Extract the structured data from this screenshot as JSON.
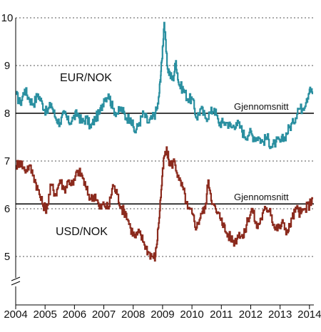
{
  "chart_data": {
    "type": "line",
    "title": "",
    "xlabel": "",
    "ylabel": "",
    "xlim": [
      2004,
      2014.15
    ],
    "ylim": [
      5,
      10
    ],
    "y_axis_break": true,
    "grid": "dotted horizontal",
    "x_ticks": [
      "2004",
      "2005",
      "2006",
      "2007",
      "2008",
      "2009",
      "2010",
      "2011",
      "2012",
      "2013",
      "2014"
    ],
    "y_ticks": [
      "5",
      "6",
      "7",
      "8",
      "9",
      "10"
    ],
    "series": [
      {
        "name": "EUR/NOK",
        "color": "#2a8fa0",
        "x": [
          2004.0,
          2004.15,
          2004.3,
          2004.45,
          2004.6,
          2004.75,
          2004.9,
          2005.05,
          2005.2,
          2005.35,
          2005.5,
          2005.65,
          2005.8,
          2005.95,
          2006.1,
          2006.25,
          2006.4,
          2006.55,
          2006.7,
          2006.85,
          2007.0,
          2007.15,
          2007.3,
          2007.45,
          2007.6,
          2007.75,
          2007.9,
          2008.05,
          2008.2,
          2008.35,
          2008.5,
          2008.65,
          2008.75,
          2008.85,
          2008.92,
          2008.97,
          2009.05,
          2009.15,
          2009.25,
          2009.35,
          2009.45,
          2009.55,
          2009.7,
          2009.85,
          2010.0,
          2010.15,
          2010.3,
          2010.45,
          2010.6,
          2010.75,
          2010.9,
          2011.05,
          2011.2,
          2011.35,
          2011.5,
          2011.65,
          2011.8,
          2011.95,
          2012.1,
          2012.25,
          2012.4,
          2012.55,
          2012.7,
          2012.85,
          2013.0,
          2013.15,
          2013.3,
          2013.45,
          2013.6,
          2013.75,
          2013.9,
          2014.0,
          2014.1
        ],
        "values": [
          8.4,
          8.2,
          8.5,
          8.3,
          8.2,
          8.4,
          8.2,
          8.0,
          8.2,
          7.9,
          7.8,
          8.0,
          7.8,
          7.9,
          8.0,
          7.8,
          7.9,
          7.7,
          7.9,
          8.0,
          8.3,
          8.4,
          8.1,
          8.0,
          8.1,
          7.9,
          7.9,
          7.6,
          7.8,
          8.0,
          7.8,
          7.9,
          8.0,
          8.2,
          8.7,
          9.1,
          9.9,
          9.0,
          8.8,
          8.7,
          9.1,
          8.6,
          8.5,
          8.3,
          8.3,
          7.9,
          8.1,
          7.9,
          8.0,
          8.1,
          7.8,
          7.8,
          7.8,
          7.7,
          7.8,
          7.7,
          7.5,
          7.6,
          7.5,
          7.5,
          7.4,
          7.5,
          7.3,
          7.4,
          7.4,
          7.5,
          7.7,
          7.8,
          8.1,
          8.1,
          8.3,
          8.5,
          8.4
        ]
      },
      {
        "name": "USD/NOK",
        "color": "#8b2a1d",
        "x": [
          2004.0,
          2004.15,
          2004.3,
          2004.45,
          2004.6,
          2004.75,
          2004.9,
          2005.05,
          2005.2,
          2005.35,
          2005.5,
          2005.65,
          2005.8,
          2005.95,
          2006.1,
          2006.25,
          2006.4,
          2006.55,
          2006.7,
          2006.85,
          2007.0,
          2007.15,
          2007.3,
          2007.45,
          2007.6,
          2007.75,
          2007.9,
          2008.05,
          2008.2,
          2008.35,
          2008.5,
          2008.65,
          2008.75,
          2008.85,
          2008.95,
          2009.05,
          2009.15,
          2009.25,
          2009.4,
          2009.55,
          2009.7,
          2009.85,
          2010.0,
          2010.15,
          2010.3,
          2010.45,
          2010.55,
          2010.7,
          2010.85,
          2011.0,
          2011.15,
          2011.3,
          2011.45,
          2011.6,
          2011.75,
          2011.9,
          2012.05,
          2012.2,
          2012.35,
          2012.5,
          2012.65,
          2012.8,
          2012.95,
          2013.1,
          2013.25,
          2013.4,
          2013.55,
          2013.7,
          2013.85,
          2014.0,
          2014.1
        ],
        "values": [
          6.9,
          7.0,
          6.8,
          6.9,
          6.7,
          6.4,
          6.1,
          6.0,
          6.5,
          6.3,
          6.6,
          6.4,
          6.6,
          6.5,
          6.8,
          6.7,
          6.4,
          6.2,
          6.3,
          6.0,
          6.1,
          6.0,
          6.5,
          6.3,
          6.0,
          5.9,
          5.6,
          5.4,
          5.5,
          5.3,
          5.1,
          5.0,
          5.0,
          5.6,
          6.4,
          7.1,
          7.2,
          6.9,
          7.0,
          6.6,
          6.4,
          6.0,
          5.9,
          5.6,
          5.9,
          6.0,
          6.6,
          6.1,
          5.9,
          5.8,
          5.5,
          5.4,
          5.3,
          5.5,
          5.4,
          5.8,
          6.0,
          5.6,
          5.8,
          6.0,
          6.0,
          5.6,
          5.6,
          5.7,
          5.5,
          5.8,
          6.0,
          5.9,
          6.0,
          6.1,
          6.2
        ]
      }
    ],
    "averages": [
      {
        "series": "EUR/NOK",
        "value": 8.0,
        "label": "Gjennomsnitt"
      },
      {
        "series": "USD/NOK",
        "value": 6.1,
        "label": "Gjennomsnitt"
      }
    ],
    "series_labels": [
      {
        "series": "EUR/NOK",
        "text": "EUR/NOK"
      },
      {
        "series": "USD/NOK",
        "text": "USD/NOK"
      }
    ]
  }
}
